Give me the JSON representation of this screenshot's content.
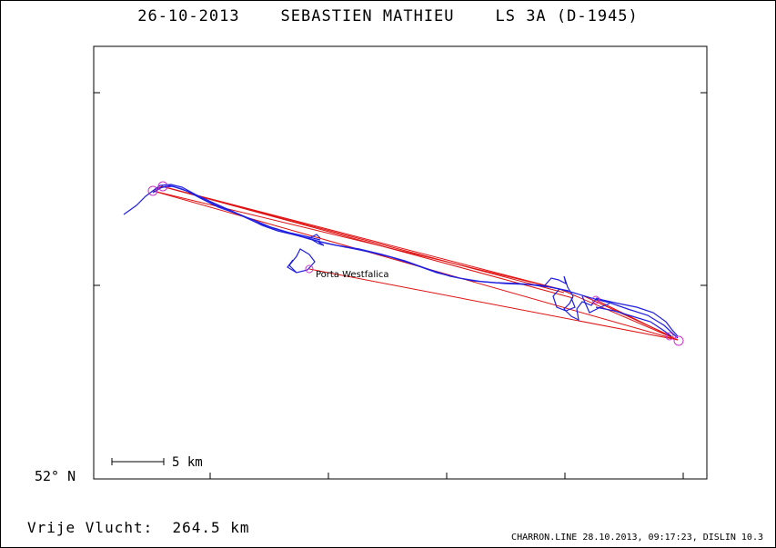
{
  "title": {
    "date": "26-10-2013",
    "pilot": "SEBASTIEN MATHIEU",
    "glider": "LS 3A (D-1945)"
  },
  "map": {
    "latitude_label": "52° N",
    "scale_label": "5 km",
    "waypoint_label": "Porta Westfalica",
    "colors": {
      "track": "#1f1fe0",
      "legs": "#e01010",
      "turnpoint_circles": "#cc33cc",
      "frame": "#000000"
    }
  },
  "footer": {
    "distance_label": "Vrije Vlucht:",
    "distance_value": "264.5 km",
    "credit": "CHARRON.LINE 28.10.2013, 09:17:23, DISLIN 10.3"
  }
}
